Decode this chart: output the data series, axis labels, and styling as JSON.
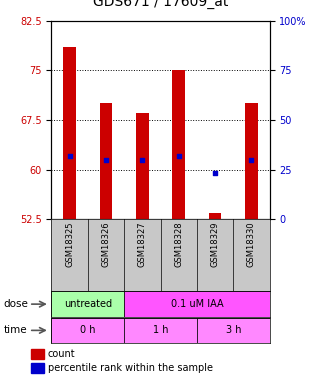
{
  "title": "GDS671 / 17609_at",
  "samples": [
    "GSM18325",
    "GSM18326",
    "GSM18327",
    "GSM18328",
    "GSM18329",
    "GSM18330"
  ],
  "bar_bottoms": [
    52.5,
    52.5,
    52.5,
    52.5,
    52.5,
    52.5
  ],
  "bar_tops": [
    78.5,
    70.0,
    68.5,
    75.0,
    53.5,
    70.0
  ],
  "blue_dot_y": [
    62.0,
    61.5,
    61.5,
    62.0,
    59.5,
    61.5
  ],
  "ylim_left": [
    52.5,
    82.5
  ],
  "ylim_right": [
    0,
    100
  ],
  "yticks_left": [
    52.5,
    60.0,
    67.5,
    75.0,
    82.5
  ],
  "yticks_right": [
    0,
    25,
    50,
    75,
    100
  ],
  "ytick_labels_left": [
    "52.5",
    "60",
    "67.5",
    "75",
    "82.5"
  ],
  "ytick_labels_right": [
    "0",
    "25",
    "50",
    "75",
    "100%"
  ],
  "dose_labels": [
    {
      "text": "untreated",
      "start": 0,
      "end": 2,
      "color": "#aaffaa"
    },
    {
      "text": "0.1 uM IAA",
      "start": 2,
      "end": 6,
      "color": "#ff55ff"
    }
  ],
  "time_labels": [
    {
      "text": "0 h",
      "start": 0,
      "end": 2,
      "color": "#ff88ff"
    },
    {
      "text": "1 h",
      "start": 2,
      "end": 4,
      "color": "#ff88ff"
    },
    {
      "text": "3 h",
      "start": 4,
      "end": 6,
      "color": "#ff88ff"
    }
  ],
  "bar_color": "#CC0000",
  "dot_color": "#0000CC",
  "grid_color": "#000000",
  "left_axis_color": "#CC0000",
  "right_axis_color": "#0000CC",
  "title_fontsize": 10,
  "tick_fontsize": 7,
  "label_fontsize": 6,
  "legend_fontsize": 7,
  "sample_box_color": "#C8C8C8"
}
